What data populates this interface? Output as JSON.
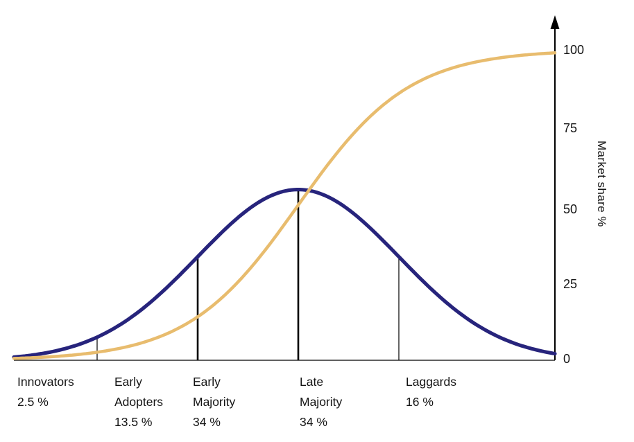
{
  "chart": {
    "ylabel": "Market share %",
    "y_ticks": [
      "100",
      "75",
      "50",
      "25",
      "0"
    ],
    "categories": [
      {
        "name": "Innovators",
        "pct": "2.5 %"
      },
      {
        "name": "Early Adopters",
        "pct": "13.5 %"
      },
      {
        "name": "Early Majority",
        "pct": "34 %"
      },
      {
        "name": "Late Majority",
        "pct": "34 %"
      },
      {
        "name": "Laggards",
        "pct": "16 %"
      }
    ]
  },
  "chart_data": {
    "type": "line",
    "ylabel": "Market share %",
    "ylim": [
      0,
      100
    ],
    "y_ticks": [
      0,
      25,
      50,
      75,
      100
    ],
    "x_axis": "adopter distribution over time (sigma units, no visible numeric scale)",
    "grid": false,
    "legend": "none",
    "series": [
      {
        "name": "adopter distribution (bell curve)",
        "color": "#27247c",
        "kind": "normal_pdf",
        "peak_pct": 55,
        "segments": [
          {
            "label": "Innovators",
            "share_pct": 2.5,
            "to_sigma": -2
          },
          {
            "label": "Early Adopters",
            "share_pct": 13.5,
            "from_sigma": -2,
            "to_sigma": -1
          },
          {
            "label": "Early Majority",
            "share_pct": 34,
            "from_sigma": -1,
            "to_sigma": 0
          },
          {
            "label": "Late Majority",
            "share_pct": 34,
            "from_sigma": 0,
            "to_sigma": 1
          },
          {
            "label": "Laggards",
            "share_pct": 16,
            "from_sigma": 1
          }
        ]
      },
      {
        "name": "cumulative market share (S-curve)",
        "color": "#e8bc6e",
        "kind": "normal_cdf",
        "start_pct": 0,
        "end_pct": 100
      }
    ],
    "boundary_lines": [
      {
        "sigma": -2,
        "weight": "thin"
      },
      {
        "sigma": -1,
        "weight": "thick"
      },
      {
        "sigma": 0,
        "weight": "thick"
      },
      {
        "sigma": 1,
        "weight": "thin"
      }
    ]
  }
}
